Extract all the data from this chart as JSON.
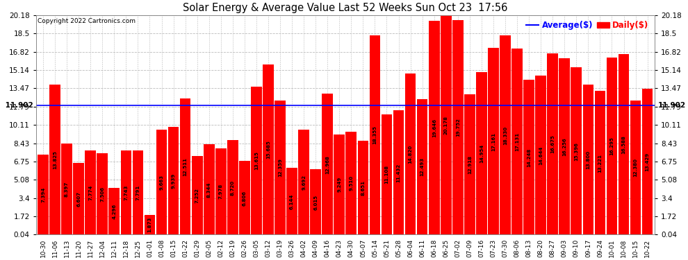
{
  "title": "Solar Energy & Average Value Last 52 Weeks Sun Oct 23  17:56",
  "copyright": "Copyright 2022 Cartronics.com",
  "legend_avg": "Average($)",
  "legend_daily": "Daily($)",
  "average_value": 11.902,
  "categories": [
    "10-30",
    "11-06",
    "11-13",
    "11-20",
    "11-27",
    "12-04",
    "12-11",
    "12-18",
    "12-25",
    "01-01",
    "01-08",
    "01-15",
    "01-22",
    "01-29",
    "02-05",
    "02-12",
    "02-19",
    "02-26",
    "03-05",
    "03-12",
    "03-19",
    "03-26",
    "04-02",
    "04-09",
    "04-16",
    "04-23",
    "04-30",
    "05-07",
    "05-14",
    "05-21",
    "05-28",
    "06-04",
    "06-11",
    "06-18",
    "06-25",
    "07-02",
    "07-09",
    "07-16",
    "07-23",
    "07-30",
    "08-06",
    "08-13",
    "08-20",
    "08-27",
    "09-03",
    "09-10",
    "09-17",
    "09-24",
    "10-01",
    "10-08",
    "10-15",
    "10-22"
  ],
  "values": [
    7.394,
    13.825,
    8.397,
    6.607,
    7.774,
    7.506,
    4.296,
    7.743,
    7.791,
    1.873,
    9.663,
    9.939,
    12.511,
    7.252,
    8.344,
    7.978,
    8.72,
    6.806,
    13.615,
    15.685,
    12.359,
    6.144,
    9.692,
    6.015,
    12.968,
    9.249,
    9.51,
    8.651,
    18.355,
    11.108,
    11.432,
    14.82,
    12.493,
    19.646,
    20.178,
    19.752,
    12.918,
    14.954,
    17.161,
    18.33,
    17.131,
    14.248,
    14.644,
    16.675,
    16.256,
    15.396,
    13.8,
    13.221,
    16.295,
    16.588,
    12.38,
    13.429
  ],
  "bar_color": "#ff0000",
  "avg_line_color": "#0000ff",
  "bg_color": "#ffffff",
  "grid_color": "#bbbbbb",
  "yticks": [
    0.04,
    1.72,
    3.4,
    5.08,
    6.75,
    8.43,
    10.11,
    11.79,
    13.47,
    15.14,
    16.82,
    18.5,
    20.18
  ],
  "ymax": 20.18,
  "ymin": 0.04
}
